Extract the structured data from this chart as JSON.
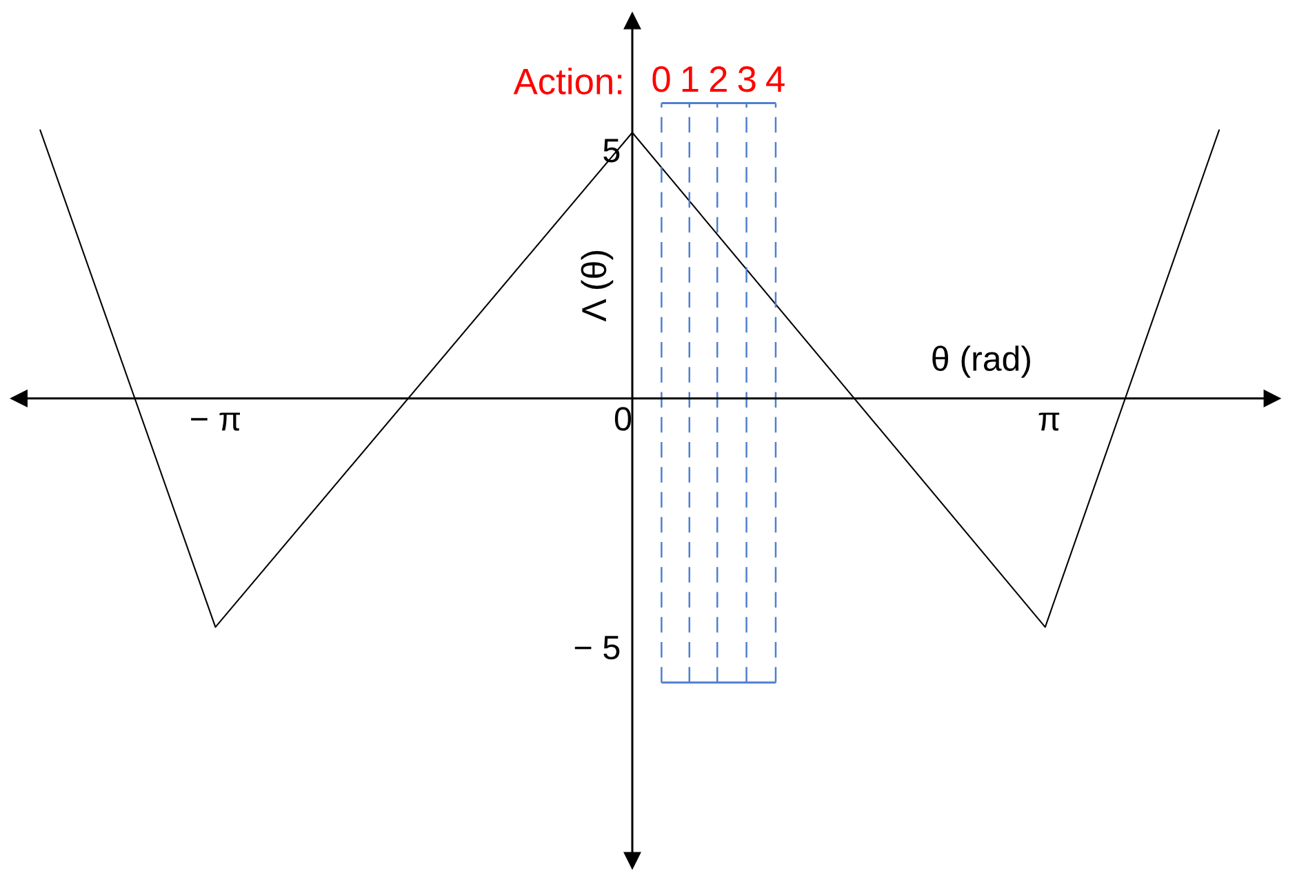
{
  "chart_data": {
    "type": "line",
    "xlabel": "θ (rad)",
    "ylabel": "Λ (θ)",
    "x2label": "Action:",
    "series": [
      {
        "color": "#000000",
        "x": [
          -4.46,
          -3.14,
          0,
          3.11,
          4.42
        ],
        "values": [
          5.4,
          -4.6,
          5.35,
          -4.6,
          5.4
        ]
      }
    ],
    "xlim": [
      -4.62,
      4.82
    ],
    "ylim": [
      -9.3,
      7.6
    ],
    "xticks": [
      {
        "value": -3.14,
        "label": "− π"
      },
      0,
      {
        "value": 3.14,
        "label": "π"
      }
    ],
    "yticks": [
      5,
      {
        "value": -5,
        "label": "− 5"
      }
    ],
    "x2lim": [
      -22.5,
      21.4
    ],
    "x2ticks": [
      0,
      1,
      2,
      3,
      4
    ],
    "ref_lines": [
      {
        "axis": "x",
        "value": 0.22,
        "color": "#4f7fd0",
        "line_style": "dashed"
      },
      {
        "axis": "x",
        "value": 0.43,
        "color": "#4f7fd0",
        "line_style": "dashed"
      },
      {
        "axis": "x",
        "value": 0.64,
        "color": "#4f7fd0",
        "line_style": "dashed"
      },
      {
        "axis": "x",
        "value": 0.86,
        "color": "#4f7fd0",
        "line_style": "dashed"
      },
      {
        "axis": "x",
        "value": 1.08,
        "color": "#4f7fd0",
        "line_style": "dashed"
      }
    ],
    "line_style": "solid"
  }
}
